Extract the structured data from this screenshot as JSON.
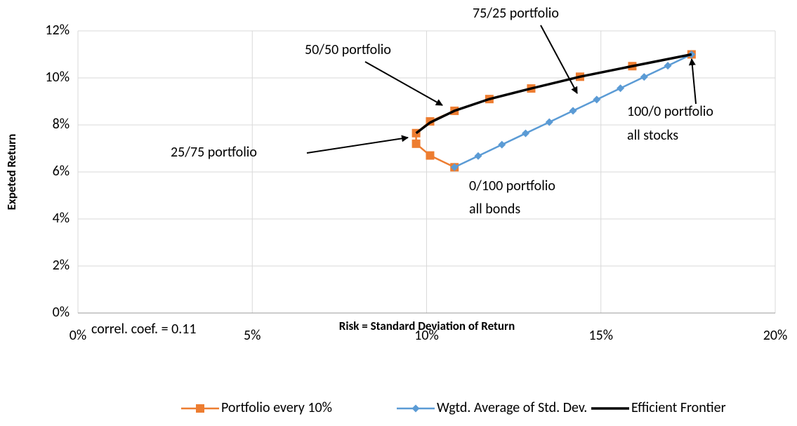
{
  "chart_data": {
    "type": "scatter",
    "x_label": "Risk = Standard Deviation of Return",
    "y_label": "Expeted Return",
    "xlim": [
      0,
      20
    ],
    "ylim": [
      0,
      12
    ],
    "xticks": [
      {
        "value": 0,
        "label": "0%"
      },
      {
        "value": 5,
        "label": "5%"
      },
      {
        "value": 10,
        "label": "10%"
      },
      {
        "value": 15,
        "label": "15%"
      },
      {
        "value": 20,
        "label": "20%"
      }
    ],
    "yticks": [
      {
        "value": 0,
        "label": "0%"
      },
      {
        "value": 2,
        "label": "2%"
      },
      {
        "value": 4,
        "label": "4%"
      },
      {
        "value": 6,
        "label": "6%"
      },
      {
        "value": 8,
        "label": "8%"
      },
      {
        "value": 10,
        "label": "10%"
      },
      {
        "value": 12,
        "label": "12%"
      }
    ],
    "grid": true,
    "series": [
      {
        "name": "Portfolio every 10%",
        "color": "#ed7d31",
        "marker": "square",
        "x": [
          10.8,
          10.1,
          9.7,
          9.7,
          10.1,
          10.8,
          11.8,
          13.0,
          14.4,
          15.9,
          17.6
        ],
        "values": [
          6.2,
          6.7,
          7.2,
          7.65,
          8.15,
          8.6,
          9.1,
          9.55,
          10.05,
          10.5,
          11.0
        ]
      },
      {
        "name": "Wgtd. Average of Std. Dev.",
        "color": "#5b9bd5",
        "marker": "diamond",
        "x": [
          10.8,
          11.48,
          12.16,
          12.84,
          13.52,
          14.2,
          14.88,
          15.56,
          16.24,
          16.92,
          17.6
        ],
        "values": [
          6.2,
          6.68,
          7.16,
          7.64,
          8.12,
          8.6,
          9.08,
          9.56,
          10.04,
          10.52,
          11.0
        ]
      },
      {
        "name": "Efficient Frontier",
        "color": "#000000",
        "marker": "none",
        "x": [
          9.7,
          10.1,
          10.8,
          11.8,
          13.0,
          14.4,
          15.9,
          17.6
        ],
        "values": [
          7.65,
          8.1,
          8.6,
          9.1,
          9.55,
          10.05,
          10.5,
          11.0
        ]
      }
    ],
    "annotations": [
      "75/25 portfolio",
      "50/50 portfolio",
      "25/75 portfolio",
      [
        "100/0 portfolio",
        "all stocks"
      ],
      [
        "0/100 portfolio",
        "all bonds"
      ],
      "correl. coef. = 0.11"
    ]
  }
}
